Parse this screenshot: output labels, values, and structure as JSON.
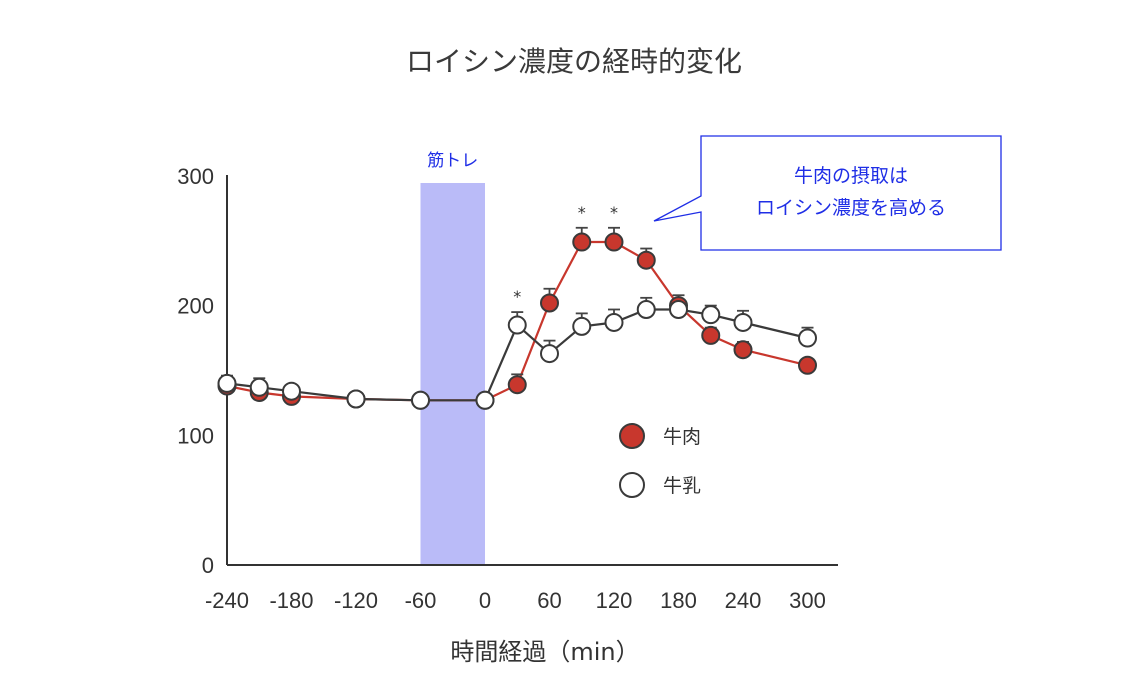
{
  "chart_data": {
    "type": "line",
    "title": "ロイシン濃度の経時的変化",
    "xlabel": "時間経過（min）",
    "ylabel": "",
    "xlim": [
      -240,
      300
    ],
    "ylim": [
      0,
      300
    ],
    "x_ticks": [
      "-240",
      "-180",
      "-120",
      "-60",
      "0",
      "60",
      "120",
      "180",
      "240",
      "300"
    ],
    "y_ticks": [
      "0",
      "100",
      "200",
      "300"
    ],
    "grid": false,
    "shaded_region": {
      "label": "筋トレ",
      "x_start": -60,
      "x_end": 0,
      "color": "#babbf8"
    },
    "callout": {
      "lines": [
        "牛肉の摂取は",
        "ロイシン濃度を高める"
      ],
      "color": "#1f2ee6"
    },
    "legend": {
      "placement": "center-right"
    },
    "significance_marker": "*",
    "series": [
      {
        "name": "牛肉",
        "color": "#c8372d",
        "marker": "filled",
        "x": [
          -240,
          -210,
          -180,
          -120,
          -60,
          0,
          30,
          60,
          90,
          120,
          150,
          180,
          210,
          240,
          300
        ],
        "y": [
          138,
          133,
          130,
          128,
          127,
          127,
          139,
          202,
          249,
          249,
          235,
          200,
          177,
          166,
          154
        ],
        "err": [
          7,
          5,
          5,
          0,
          0,
          0,
          8,
          11,
          11,
          11,
          9,
          8,
          6,
          6,
          0
        ],
        "significant": [
          false,
          false,
          false,
          false,
          false,
          false,
          false,
          false,
          true,
          true,
          false,
          false,
          false,
          false,
          false
        ]
      },
      {
        "name": "牛乳",
        "color": "#3a3a3a",
        "marker": "open",
        "x": [
          -240,
          -210,
          -180,
          -120,
          -60,
          0,
          30,
          60,
          90,
          120,
          150,
          180,
          210,
          240,
          300
        ],
        "y": [
          140,
          137,
          134,
          128,
          127,
          127,
          185,
          163,
          184,
          187,
          197,
          197,
          193,
          187,
          175
        ],
        "err": [
          6,
          7,
          0,
          0,
          0,
          0,
          10,
          10,
          10,
          10,
          9,
          0,
          7,
          9,
          8
        ],
        "significant": [
          false,
          false,
          false,
          false,
          false,
          false,
          true,
          false,
          false,
          false,
          false,
          false,
          false,
          false,
          false
        ]
      }
    ]
  }
}
